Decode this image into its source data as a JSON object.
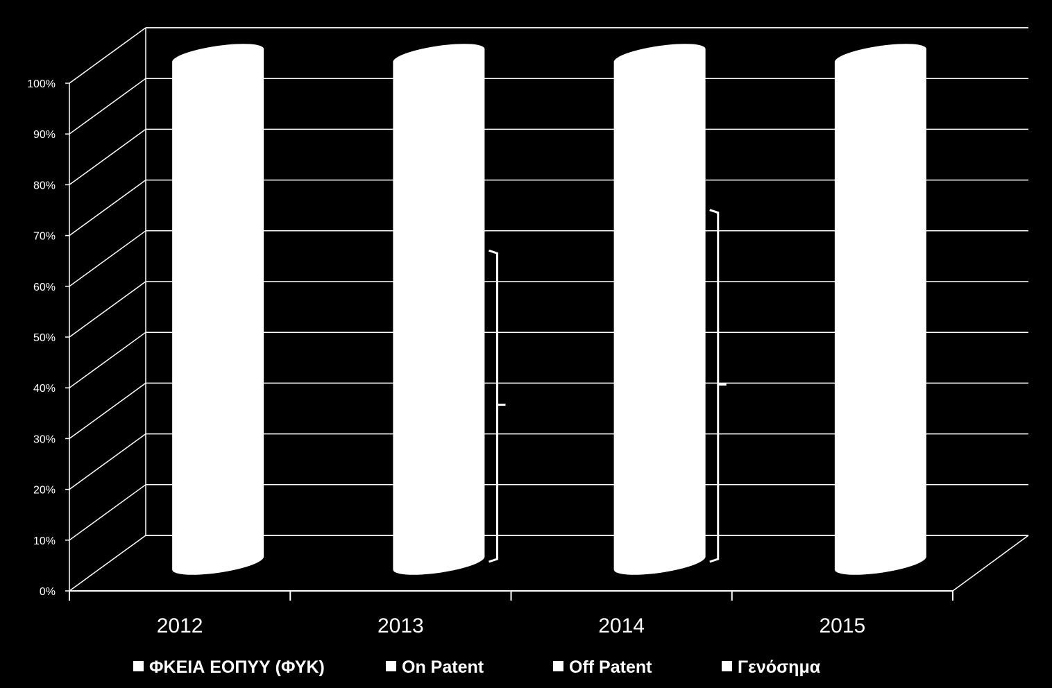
{
  "chart_data": {
    "type": "bar",
    "style": "3d-stacked-percent-cylinder",
    "categories": [
      "2012",
      "2013",
      "2014",
      "2015"
    ],
    "series": [
      {
        "name": "ΦΚΕΙΑ ΕΟΠΥΥ (ΦΥΚ)",
        "color": "#ffffff"
      },
      {
        "name": "On Patent",
        "color": "#ffffff"
      },
      {
        "name": "Off Patent",
        "color": "#ffffff"
      },
      {
        "name": "Γενόσημα",
        "color": "#ffffff"
      }
    ],
    "totals": [
      100,
      100,
      100,
      100
    ],
    "y_ticks": [
      "0%",
      "10%",
      "20%",
      "30%",
      "40%",
      "50%",
      "60%",
      "70%",
      "80%",
      "90%",
      "100%"
    ],
    "ylim": [
      0,
      100
    ],
    "grid": true,
    "legend_position": "bottom",
    "brackets": [
      {
        "category": "2013",
        "from": 0,
        "to": 65
      },
      {
        "category": "2014",
        "from": 0,
        "to": 73
      }
    ],
    "background": "#000000",
    "foreground": "#ffffff"
  }
}
